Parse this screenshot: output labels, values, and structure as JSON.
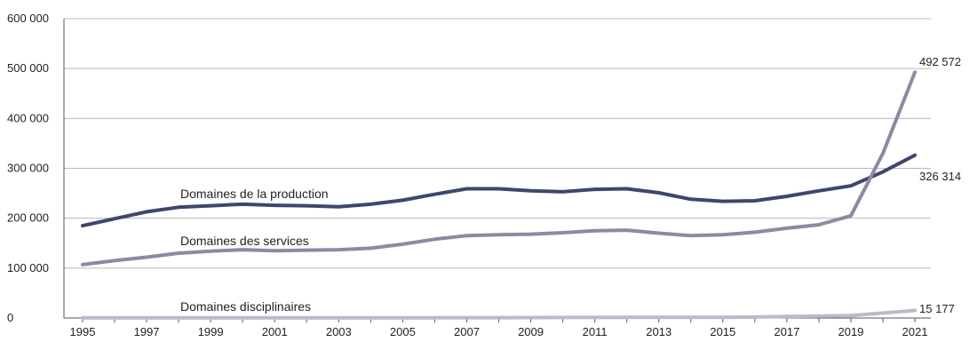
{
  "chart_data": {
    "type": "line",
    "x": [
      1995,
      1996,
      1997,
      1998,
      1999,
      2000,
      2001,
      2002,
      2003,
      2004,
      2005,
      2006,
      2007,
      2008,
      2009,
      2010,
      2011,
      2012,
      2013,
      2014,
      2015,
      2016,
      2017,
      2018,
      2019,
      2020,
      2021
    ],
    "x_ticks": [
      "1995",
      "1997",
      "1999",
      "2001",
      "2003",
      "2005",
      "2007",
      "2009",
      "2011",
      "2013",
      "2015",
      "2017",
      "2019",
      "2021"
    ],
    "y_ticks": [
      "0",
      "100 000",
      "200 000",
      "300 000",
      "400 000",
      "500 000",
      "600 000"
    ],
    "ylim": [
      0,
      600000
    ],
    "grid": true,
    "series": [
      {
        "name": "Domaines de la production",
        "color": "#3d4670",
        "values": [
          185000,
          199000,
          213000,
          222000,
          225000,
          228000,
          226000,
          225000,
          223000,
          228000,
          236000,
          248000,
          259000,
          259000,
          255000,
          253000,
          258000,
          259000,
          251000,
          238000,
          234000,
          235000,
          244000,
          255000,
          265000,
          293000,
          326314
        ],
        "end_label": "326 314"
      },
      {
        "name": "Domaines des services",
        "color": "#8a8aa3",
        "values": [
          107000,
          115000,
          122000,
          130000,
          134000,
          137000,
          135000,
          136000,
          137000,
          140000,
          148000,
          158000,
          165000,
          167000,
          168000,
          171000,
          175000,
          176000,
          170000,
          165000,
          167000,
          172000,
          180000,
          187000,
          205000,
          330000,
          492572
        ],
        "end_label": "492 572"
      },
      {
        "name": "Domaines disciplinaires",
        "color": "#b8bcc8",
        "values": [
          500,
          500,
          600,
          500,
          400,
          500,
          500,
          600,
          600,
          500,
          500,
          600,
          700,
          800,
          900,
          1000,
          1100,
          1200,
          1300,
          1400,
          1500,
          2000,
          3000,
          4000,
          5000,
          10000,
          15177
        ],
        "end_label": "15 177"
      }
    ]
  }
}
